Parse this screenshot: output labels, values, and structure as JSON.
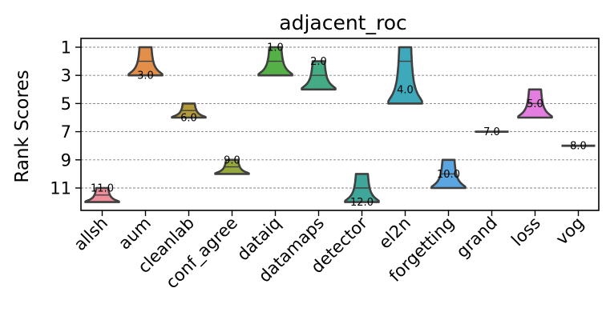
{
  "chart_data": {
    "type": "violin",
    "title": "adjacent_roc",
    "xlabel": "",
    "ylabel": "Rank Scores",
    "y_inverted": true,
    "ylim": [
      0.1,
      12.6
    ],
    "yticks": [
      1,
      3,
      5,
      7,
      9,
      11
    ],
    "grid": "horizontal dashed",
    "categories": [
      "allsh",
      "aum",
      "cleanlab",
      "conf_agree",
      "dataiq",
      "datamaps",
      "detector",
      "el2n",
      "forgetting",
      "grand",
      "loss",
      "vog"
    ],
    "series": [
      {
        "category": "allsh",
        "label": "11.0",
        "min": 11.0,
        "max": 12.0,
        "median": 11.5,
        "color": "#ee8e9a"
      },
      {
        "category": "aum",
        "label": "3.0",
        "min": 1.0,
        "max": 3.0,
        "median": 2.0,
        "color": "#e38f4a"
      },
      {
        "category": "cleanlab",
        "label": "6.0",
        "min": 5.0,
        "max": 6.0,
        "median": 5.5,
        "color": "#b49a3b"
      },
      {
        "category": "conf_agree",
        "label": "9.0",
        "min": 9.0,
        "max": 10.0,
        "median": 9.5,
        "color": "#94a83c"
      },
      {
        "category": "dataiq",
        "label": "1.0",
        "min": 1.0,
        "max": 3.0,
        "median": 2.0,
        "color": "#56b048"
      },
      {
        "category": "datamaps",
        "label": "2.0",
        "min": 2.0,
        "max": 4.0,
        "median": 3.0,
        "color": "#43ac84"
      },
      {
        "category": "detector",
        "label": "12.0",
        "min": 10.0,
        "max": 12.0,
        "median": 11.0,
        "color": "#3ea79a"
      },
      {
        "category": "el2n",
        "label": "4.0",
        "min": 1.0,
        "max": 5.0,
        "median": 2.0,
        "color": "#3da9bb"
      },
      {
        "category": "forgetting",
        "label": "10.0",
        "min": 9.0,
        "max": 11.0,
        "median": 10.0,
        "color": "#5ba6e0"
      },
      {
        "category": "grand",
        "label": "7.0",
        "min": 7.0,
        "max": 7.0,
        "median": 7.0,
        "color": "#9a8ae4"
      },
      {
        "category": "loss",
        "label": "5.0",
        "min": 4.0,
        "max": 6.0,
        "median": 5.0,
        "color": "#e37ee0"
      },
      {
        "category": "vog",
        "label": "8.0",
        "min": 8.0,
        "max": 8.0,
        "median": 8.0,
        "color": "#ea7fb6"
      }
    ]
  }
}
